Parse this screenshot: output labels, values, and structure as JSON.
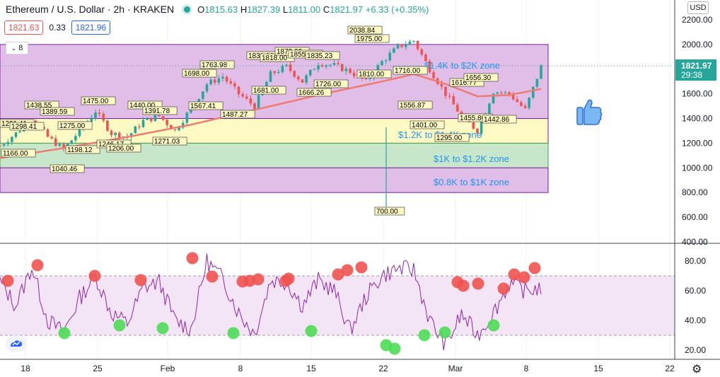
{
  "header": {
    "title": "Ethereum / U.S. Dollar · 2h · KRAKEN",
    "open_label": "O",
    "open": "1815.63",
    "high_label": "H",
    "high": "1827.39",
    "low_label": "L",
    "low": "1811.00",
    "close_label": "C",
    "close": "1821.97",
    "change": "+6.33 (+0.35%)"
  },
  "quote": {
    "bid": "1821.63",
    "spread": "0.33",
    "ask": "1821.96"
  },
  "collapse_count": "8",
  "currency": "USD",
  "price_axis": {
    "ticks": [
      "2200.00",
      "2000.00",
      "1800.00",
      "1600.00",
      "1400.00",
      "1200.00",
      "1000.00",
      "800.00",
      "600.00",
      "400.00"
    ],
    "last_price": "1821.97",
    "countdown": "29:38"
  },
  "rsi_axis": {
    "ticks": [
      "80.00",
      "60.00",
      "40.00",
      "20.00"
    ]
  },
  "time_axis": {
    "labels": [
      "18",
      "25",
      "Feb",
      "8",
      "15",
      "22",
      "Mar",
      "8",
      "15",
      "22"
    ]
  },
  "zones": [
    {
      "label": "$1.4K to $2K zone",
      "low": 1400,
      "high": 2000,
      "color": "#e1bee7"
    },
    {
      "label": "$1.2K to $1.4K zone",
      "low": 1200,
      "high": 1400,
      "color": "#fff9c4"
    },
    {
      "label": "$1K to $1.2K zone",
      "low": 1000,
      "high": 1200,
      "color": "#c8e6c9"
    },
    {
      "label": "$0.8K to $1K zone",
      "low": 800,
      "high": 1000,
      "color": "#e1bee7"
    }
  ],
  "price_labels": [
    "1291.41",
    "1298.41",
    "1166.00",
    "1438.55",
    "1389.59",
    "1275.00",
    "1198.12",
    "1040.46",
    "1475.00",
    "1246.17",
    "1206.00",
    "1440.00",
    "1391.78",
    "1271.03",
    "1698.00",
    "1763.98",
    "1567.41",
    "1487.27",
    "1831.00",
    "1818.00",
    "1681.00",
    "1873.00",
    "1855.00",
    "1835.23",
    "1726.00",
    "1666.26",
    "2038.84",
    "1975.00",
    "1810.00",
    "1716.00",
    "700.00",
    "1556.87",
    "1401.00",
    "1295.00",
    "1616.77",
    "1656.30",
    "1455.80",
    "1442.86"
  ],
  "zone_label_mid": "$1.2K to $1.4K zone",
  "chart_data": {
    "type": "line",
    "title": "Ethereum / U.S. Dollar · 2h · KRAKEN",
    "xlabel": "",
    "ylabel": "",
    "ylim": [
      400,
      2200
    ],
    "x_ticks": [
      "18",
      "25",
      "Feb",
      "8",
      "15",
      "22",
      "Mar",
      "8",
      "15",
      "22"
    ],
    "series": [
      {
        "name": "",
        "color": "#26a69a",
        "x_days": [
          0,
          2,
          4,
          6,
          8,
          10,
          12,
          14,
          16,
          18,
          20,
          22,
          24,
          26,
          28,
          30,
          32,
          34,
          36,
          38,
          40,
          42,
          44,
          46,
          48,
          50,
          52,
          54,
          56,
          58,
          60,
          62,
          64,
          66,
          68
        ],
        "values": [
          1180,
          1280,
          1400,
          1250,
          1150,
          1300,
          1460,
          1280,
          1250,
          1380,
          1420,
          1300,
          1480,
          1680,
          1740,
          1600,
          1500,
          1760,
          1820,
          1700,
          1850,
          1830,
          1780,
          1700,
          1860,
          1980,
          2030,
          1800,
          1600,
          1420,
          1300,
          1620,
          1600,
          1470,
          1820
        ]
      },
      {
        "name": "",
        "color": "#ef7c72",
        "x_days": [
          0,
          8,
          16,
          24,
          32,
          40,
          48,
          52,
          56,
          60,
          64,
          68
        ],
        "values": [
          1080,
          1160,
          1250,
          1350,
          1470,
          1590,
          1700,
          1760,
          1680,
          1580,
          1590,
          1640
        ]
      }
    ],
    "rsi": {
      "ylim": [
        20,
        80
      ],
      "overbought": 70,
      "oversold": 30,
      "x_days": [
        0,
        2,
        4,
        6,
        8,
        10,
        12,
        14,
        16,
        18,
        20,
        22,
        24,
        26,
        28,
        30,
        32,
        34,
        36,
        38,
        40,
        42,
        44,
        46,
        48,
        50,
        52,
        54,
        56,
        58,
        60,
        62,
        64,
        66,
        68
      ],
      "values": [
        66,
        50,
        76,
        40,
        32,
        55,
        70,
        45,
        38,
        62,
        66,
        40,
        34,
        80,
        68,
        45,
        31,
        67,
        66,
        50,
        67,
        60,
        33,
        56,
        70,
        75,
        74,
        40,
        23,
        44,
        30,
        45,
        65,
        60,
        62
      ]
    }
  }
}
